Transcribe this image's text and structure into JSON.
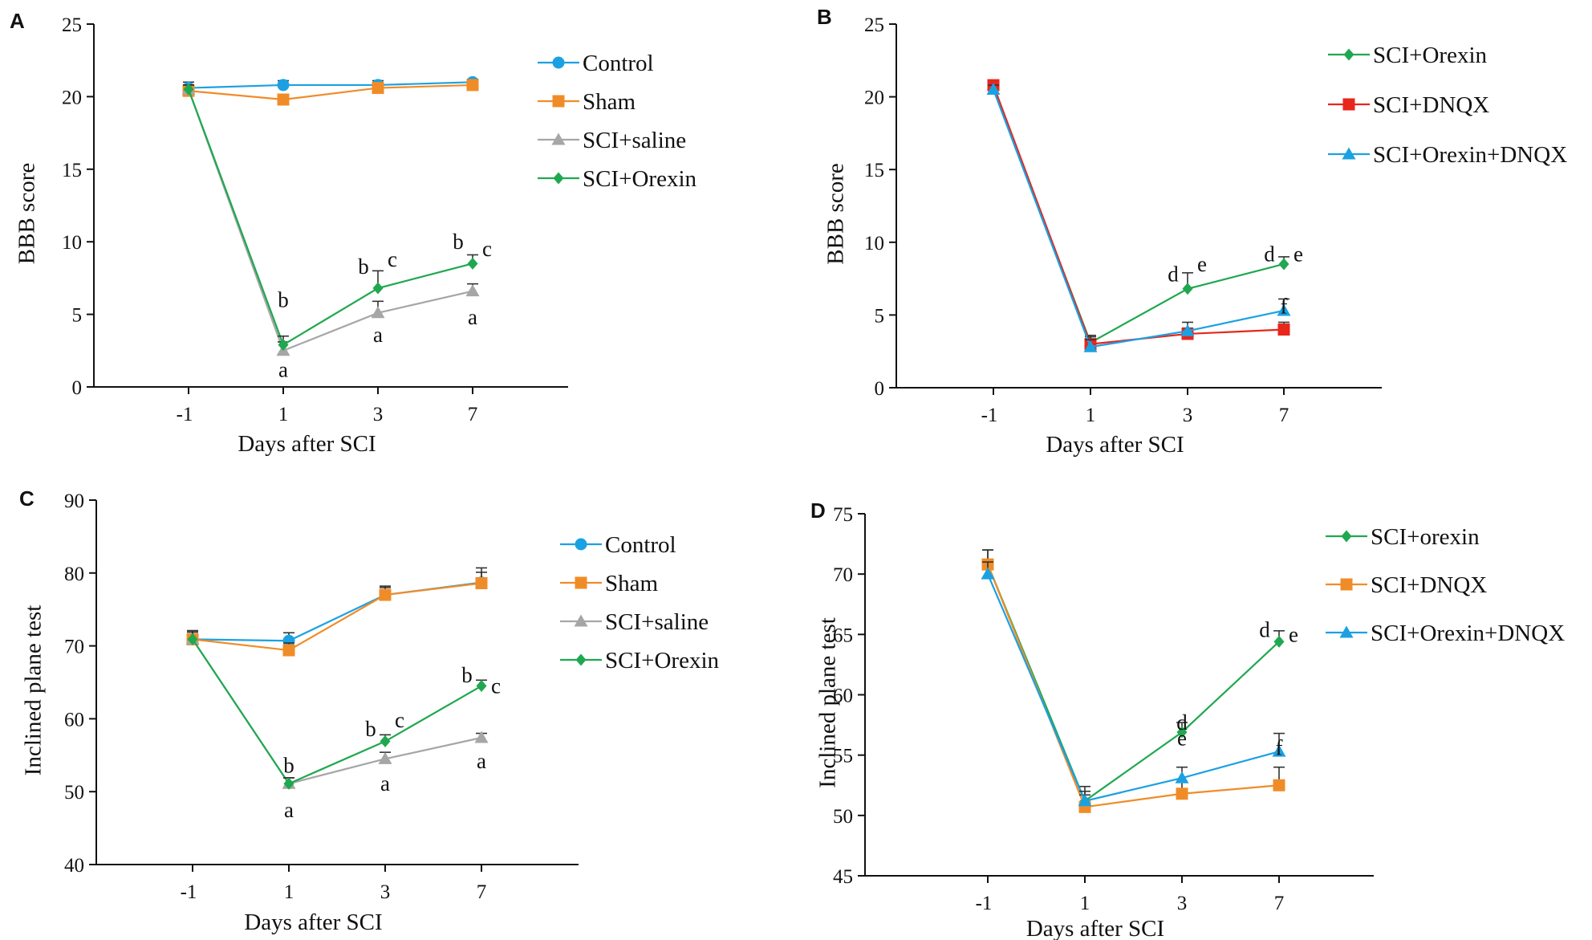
{
  "chart_data": [
    {
      "panel": "A",
      "type": "line",
      "xlabel": "Days after SCI",
      "ylabel": "BBB score",
      "categories": [
        "-1",
        "1",
        "3",
        "7"
      ],
      "ylim": [
        0,
        25
      ],
      "yticks": [
        0,
        5,
        10,
        15,
        20,
        25
      ],
      "legend_position": "top-right",
      "series": [
        {
          "name": "Control",
          "color": "#1ba1e2",
          "marker": "circle",
          "values": [
            20.6,
            20.8,
            20.8,
            21.0
          ],
          "errors": [
            0.4,
            0.3,
            0.3,
            0.2
          ]
        },
        {
          "name": "Sham",
          "color": "#f08c28",
          "marker": "square",
          "values": [
            20.4,
            19.8,
            20.6,
            20.8
          ],
          "errors": [
            0.3,
            0.3,
            0.3,
            0.3
          ]
        },
        {
          "name": "SCI+saline",
          "color": "#a6a6a6",
          "marker": "triangle",
          "values": [
            20.5,
            2.5,
            5.1,
            6.6
          ],
          "errors": [
            0.3,
            0.6,
            0.8,
            0.5
          ]
        },
        {
          "name": "SCI+Orexin",
          "color": "#1fa84f",
          "marker": "diamond",
          "values": [
            20.5,
            2.9,
            6.8,
            8.5
          ],
          "errors": [
            0.3,
            0.6,
            1.2,
            0.6
          ]
        }
      ],
      "annotations": [
        {
          "text": "b",
          "x": "1",
          "y": 6.0
        },
        {
          "text": "a",
          "x": "1",
          "y": 1.2
        },
        {
          "text": "b",
          "x": "3",
          "y": 8.3
        },
        {
          "text": "c",
          "x": "3",
          "y": 8.8
        },
        {
          "text": "a",
          "x": "3",
          "y": 3.6
        },
        {
          "text": "b",
          "x": "7",
          "y": 10.0
        },
        {
          "text": "c",
          "x": "7",
          "y": 9.5
        },
        {
          "text": "a",
          "x": "7",
          "y": 4.8
        }
      ]
    },
    {
      "panel": "B",
      "type": "line",
      "xlabel": "Days after SCI",
      "ylabel": "BBB score",
      "categories": [
        "-1",
        "1",
        "3",
        "7"
      ],
      "ylim": [
        0,
        25
      ],
      "yticks": [
        0,
        5,
        10,
        15,
        20,
        25
      ],
      "legend_position": "top-right",
      "series": [
        {
          "name": "SCI+Orexin",
          "color": "#1fa84f",
          "marker": "diamond",
          "values": [
            20.6,
            3.1,
            6.8,
            8.5
          ],
          "errors": [
            0.4,
            0.5,
            1.1,
            0.5
          ]
        },
        {
          "name": "SCI+DNQX",
          "color": "#e8261c",
          "marker": "square",
          "values": [
            20.8,
            3.0,
            3.7,
            4.0
          ],
          "errors": [
            0.3,
            0.5,
            0.4,
            0.5
          ]
        },
        {
          "name": "SCI+Orexin+DNQX",
          "color": "#1ba1e2",
          "marker": "triangle",
          "values": [
            20.5,
            2.8,
            3.9,
            5.3
          ],
          "errors": [
            0.3,
            0.5,
            0.6,
            0.8
          ]
        }
      ],
      "annotations": [
        {
          "text": "d",
          "x": "3",
          "y": 7.8
        },
        {
          "text": "e",
          "x": "3",
          "y": 8.5
        },
        {
          "text": "d",
          "x": "7",
          "y": 9.2
        },
        {
          "text": "e",
          "x": "7",
          "y": 9.2
        },
        {
          "text": "f",
          "x": "7",
          "y": 5.6
        }
      ]
    },
    {
      "panel": "C",
      "type": "line",
      "xlabel": "Days after SCI",
      "ylabel": "Inclined plane test",
      "categories": [
        "-1",
        "1",
        "3",
        "7"
      ],
      "ylim": [
        40,
        90
      ],
      "yticks": [
        40,
        50,
        60,
        70,
        80,
        90
      ],
      "legend_position": "top-right",
      "series": [
        {
          "name": "Control",
          "color": "#1ba1e2",
          "marker": "circle",
          "values": [
            70.9,
            70.7,
            77.0,
            78.7
          ],
          "errors": [
            1.2,
            1.1,
            1.2,
            2.0
          ]
        },
        {
          "name": "Sham",
          "color": "#f08c28",
          "marker": "square",
          "values": [
            70.9,
            69.4,
            77.0,
            78.6
          ],
          "errors": [
            1.0,
            1.0,
            1.0,
            1.5
          ]
        },
        {
          "name": "SCI+saline",
          "color": "#a6a6a6",
          "marker": "triangle",
          "values": [
            70.9,
            51.1,
            54.5,
            57.4
          ],
          "errors": [
            1.0,
            0.8,
            0.9,
            0.6
          ]
        },
        {
          "name": "SCI+Orexin",
          "color": "#1fa84f",
          "marker": "diamond",
          "values": [
            70.9,
            51.1,
            56.9,
            64.5
          ],
          "errors": [
            1.0,
            0.8,
            0.9,
            0.8
          ]
        }
      ],
      "annotations": [
        {
          "text": "b",
          "x": "1",
          "y": 53.6
        },
        {
          "text": "a",
          "x": "1",
          "y": 47.5
        },
        {
          "text": "b",
          "x": "3",
          "y": 58.6
        },
        {
          "text": "c",
          "x": "3",
          "y": 59.8
        },
        {
          "text": "a",
          "x": "3",
          "y": 51.1
        },
        {
          "text": "b",
          "x": "7",
          "y": 66.0
        },
        {
          "text": "c",
          "x": "7",
          "y": 64.5
        },
        {
          "text": "a",
          "x": "7",
          "y": 54.2
        }
      ]
    },
    {
      "panel": "D",
      "type": "line",
      "xlabel": "Days after SCI",
      "ylabel": "Inclined plane test",
      "categories": [
        "-1",
        "1",
        "3",
        "7"
      ],
      "ylim": [
        45,
        75
      ],
      "yticks": [
        45,
        50,
        55,
        60,
        65,
        70,
        75
      ],
      "legend_position": "top-right",
      "series": [
        {
          "name": "SCI+orexin",
          "color": "#1fa84f",
          "marker": "diamond",
          "values": [
            70.8,
            51.2,
            56.9,
            64.4
          ],
          "errors": [
            1.2,
            1.2,
            0.8,
            0.9
          ]
        },
        {
          "name": "SCI+DNQX",
          "color": "#f08c28",
          "marker": "square",
          "values": [
            70.8,
            50.7,
            51.8,
            52.5
          ],
          "errors": [
            1.2,
            1.0,
            1.0,
            1.5
          ]
        },
        {
          "name": "SCI+Orexin+DNQX",
          "color": "#1ba1e2",
          "marker": "triangle",
          "values": [
            70.0,
            51.2,
            53.1,
            55.3
          ],
          "errors": [
            1.0,
            0.8,
            0.9,
            1.5
          ]
        }
      ],
      "annotations": [
        {
          "text": "d",
          "x": "3",
          "y": 57.7
        },
        {
          "text": "e",
          "x": "3",
          "y": 56.4
        },
        {
          "text": "d",
          "x": "7",
          "y": 65.4
        },
        {
          "text": "e",
          "x": "7",
          "y": 65.0
        },
        {
          "text": "f",
          "x": "7",
          "y": 55.6
        }
      ]
    }
  ]
}
